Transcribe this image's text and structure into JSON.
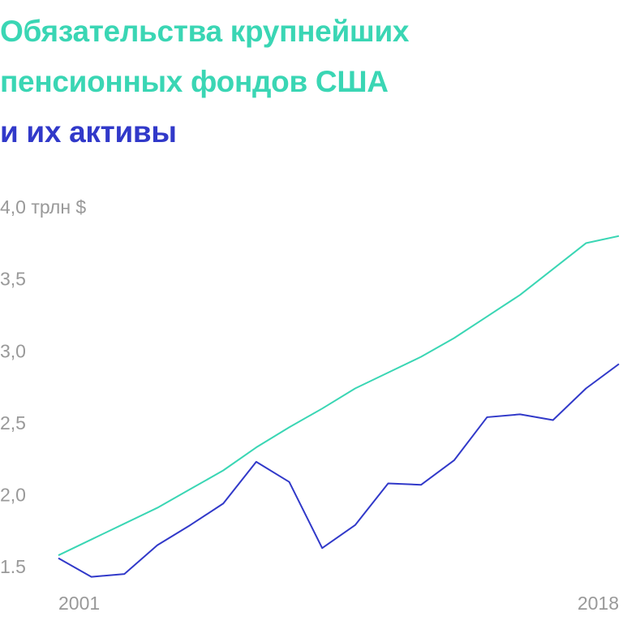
{
  "chart_data": {
    "type": "line",
    "title_parts": [
      "Обязательства крупнейших пенсионных фондов США",
      "и их активы"
    ],
    "x": [
      2001,
      2002,
      2003,
      2004,
      2005,
      2006,
      2007,
      2008,
      2009,
      2010,
      2011,
      2012,
      2013,
      2014,
      2015,
      2016,
      2017,
      2018
    ],
    "series": [
      {
        "color": "#3ad6b4",
        "values": [
          1.59,
          1.7,
          1.81,
          1.92,
          2.05,
          2.18,
          2.34,
          2.48,
          2.61,
          2.75,
          2.86,
          2.97,
          3.1,
          3.25,
          3.4,
          3.58,
          3.76,
          3.81
        ]
      },
      {
        "color": "#3139c9",
        "values": [
          1.57,
          1.44,
          1.46,
          1.66,
          1.8,
          1.95,
          2.24,
          2.1,
          1.64,
          1.8,
          2.09,
          2.08,
          2.25,
          2.55,
          2.57,
          2.53,
          2.75,
          2.92
        ]
      }
    ],
    "xlim": [
      2001,
      2018
    ],
    "xticks": [
      2001,
      2018
    ],
    "ylim": [
      1.5,
      4.0
    ],
    "yticks": [
      1.5,
      {
        "value": 2,
        "label": "2,0"
      },
      {
        "value": 2.5,
        "label": "2,5"
      },
      {
        "value": 3,
        "label": "3,0"
      },
      {
        "value": 3.5,
        "label": "3,5"
      },
      {
        "value": 4,
        "label": "4,0 трлн $"
      }
    ]
  }
}
